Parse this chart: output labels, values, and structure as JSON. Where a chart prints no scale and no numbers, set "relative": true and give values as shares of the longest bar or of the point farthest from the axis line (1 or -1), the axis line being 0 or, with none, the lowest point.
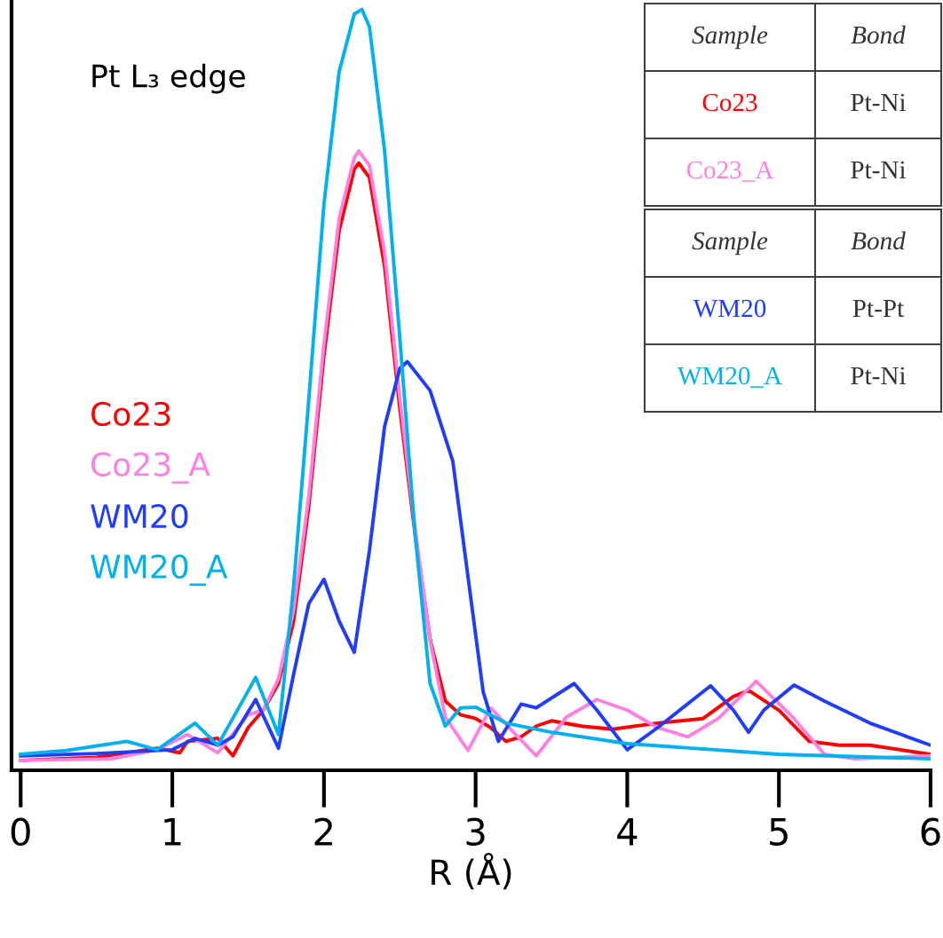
{
  "chart_data": {
    "type": "line",
    "xlabel": "R (Å)",
    "relative": true,
    "xlim": [
      -0.06,
      6
    ],
    "xticks": [
      0,
      1,
      2,
      3,
      4,
      5,
      6
    ],
    "grid": false,
    "legend": "left",
    "marker": "none",
    "line_style": "solid",
    "annotations": [
      "Pt L₃ edge",
      "Sample",
      "Bond",
      "Co23",
      "Pt-Ni",
      "Co23_A",
      "Pt-Ni",
      "Sample",
      "Bond",
      "WM20",
      "Pt-Pt",
      "WM20_A",
      "Pt-Ni"
    ],
    "series": [
      {
        "name": "Co23",
        "color": "#ff0000",
        "x": [
          0,
          0.5,
          0.9,
          1.05,
          1.1,
          1.3,
          1.4,
          1.5,
          1.6,
          1.7,
          1.8,
          1.9,
          2.0,
          2.1,
          2.2,
          2.23,
          2.3,
          2.4,
          2.5,
          2.6,
          2.7,
          2.8,
          2.9,
          3.0,
          3.1,
          3.2,
          3.3,
          3.4,
          3.5,
          3.7,
          3.9,
          4.2,
          4.5,
          4.7,
          4.8,
          5.0,
          5.2,
          5.4,
          5.6,
          6.0
        ],
        "values": [
          0.013,
          0.017,
          0.029,
          0.023,
          0.038,
          0.042,
          0.019,
          0.056,
          0.079,
          0.114,
          0.196,
          0.347,
          0.545,
          0.709,
          0.79,
          0.798,
          0.779,
          0.662,
          0.476,
          0.312,
          0.172,
          0.091,
          0.073,
          0.068,
          0.056,
          0.038,
          0.044,
          0.058,
          0.065,
          0.058,
          0.054,
          0.062,
          0.068,
          0.097,
          0.105,
          0.079,
          0.038,
          0.033,
          0.033,
          0.021
        ]
      },
      {
        "name": "Co23_A",
        "color": "#ff80e0",
        "x": [
          0,
          0.6,
          0.9,
          1.1,
          1.3,
          1.5,
          1.6,
          1.7,
          1.8,
          1.9,
          2.0,
          2.1,
          2.2,
          2.23,
          2.3,
          2.4,
          2.5,
          2.6,
          2.7,
          2.8,
          2.95,
          3.1,
          3.25,
          3.4,
          3.6,
          3.8,
          4.0,
          4.2,
          4.4,
          4.6,
          4.85,
          5.1,
          5.3,
          5.5,
          6.0
        ],
        "values": [
          0.013,
          0.015,
          0.027,
          0.047,
          0.023,
          0.073,
          0.079,
          0.12,
          0.21,
          0.36,
          0.56,
          0.725,
          0.805,
          0.814,
          0.795,
          0.68,
          0.49,
          0.32,
          0.17,
          0.07,
          0.026,
          0.082,
          0.05,
          0.019,
          0.07,
          0.093,
          0.079,
          0.056,
          0.044,
          0.068,
          0.117,
          0.068,
          0.021,
          0.015,
          0.019
        ]
      },
      {
        "name": "WM20",
        "color": "#1f3cff",
        "x": [
          0,
          0.5,
          1.0,
          1.15,
          1.3,
          1.4,
          1.55,
          1.7,
          1.8,
          1.9,
          2.0,
          2.1,
          2.2,
          2.3,
          2.4,
          2.5,
          2.55,
          2.7,
          2.85,
          2.95,
          3.05,
          3.15,
          3.3,
          3.4,
          3.65,
          3.8,
          4.0,
          4.2,
          4.55,
          4.7,
          4.8,
          4.9,
          5.1,
          5.3,
          5.6,
          6.0
        ],
        "values": [
          0.019,
          0.022,
          0.027,
          0.042,
          0.033,
          0.044,
          0.093,
          0.029,
          0.126,
          0.219,
          0.251,
          0.196,
          0.155,
          0.289,
          0.452,
          0.528,
          0.537,
          0.499,
          0.406,
          0.254,
          0.103,
          0.038,
          0.087,
          0.082,
          0.114,
          0.079,
          0.027,
          0.056,
          0.111,
          0.079,
          0.05,
          0.079,
          0.112,
          0.091,
          0.062,
          0.033
        ]
      },
      {
        "name": "WM20_A",
        "color": "#00b0f0",
        "x": [
          0,
          0.3,
          0.7,
          0.9,
          1.15,
          1.3,
          1.55,
          1.7,
          1.8,
          1.9,
          2.0,
          2.1,
          2.2,
          2.25,
          2.3,
          2.4,
          2.5,
          2.6,
          2.7,
          2.8,
          2.9,
          3.0,
          3.2,
          3.5,
          4.0,
          5.0,
          6.0
        ],
        "values": [
          0.021,
          0.026,
          0.038,
          0.027,
          0.062,
          0.033,
          0.122,
          0.047,
          0.242,
          0.487,
          0.744,
          0.918,
          0.994,
          1.0,
          0.977,
          0.814,
          0.569,
          0.312,
          0.114,
          0.058,
          0.082,
          0.083,
          0.062,
          0.05,
          0.035,
          0.021,
          0.015
        ]
      }
    ]
  }
}
